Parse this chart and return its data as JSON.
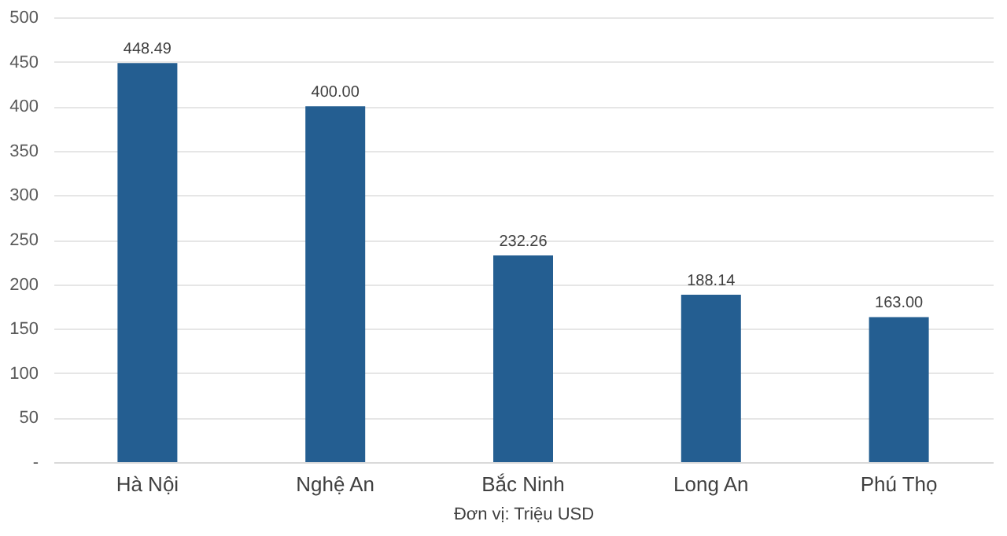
{
  "chart_data": {
    "type": "bar",
    "categories": [
      "Hà Nội",
      "Nghệ An",
      "Bắc Ninh",
      "Long An",
      "Phú Thọ"
    ],
    "values": [
      448.49,
      400.0,
      232.26,
      188.14,
      163.0
    ],
    "value_labels": [
      "448.49",
      "400.00",
      "232.26",
      "188.14",
      "163.00"
    ],
    "color": "#245e91",
    "xlabel": "Đơn vị: Triệu USD",
    "ylim": [
      0,
      500
    ],
    "yticks": [
      {
        "value": 0,
        "label": "-"
      },
      50,
      100,
      150,
      200,
      250,
      300,
      350,
      400,
      450,
      500
    ],
    "grid": "y"
  }
}
